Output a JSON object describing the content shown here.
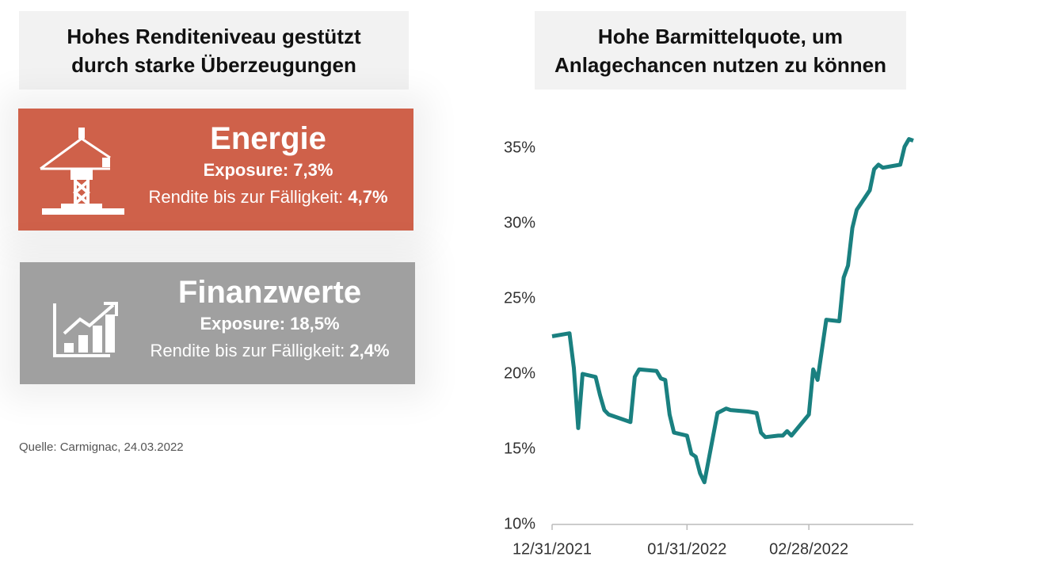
{
  "left": {
    "title": [
      "Hohes Renditeniveau gestützt",
      "durch starke Überzeugungen"
    ],
    "cards": [
      {
        "name": "Energie",
        "exposure_label": "Exposure:",
        "exposure": "7,3%",
        "yield_label": "Rendite bis zur Fälligkeit:",
        "yield": "4,7%",
        "color": "#cf614a"
      },
      {
        "name": "Finanzwerte",
        "exposure_label": "Exposure:",
        "exposure": "18,5%",
        "yield_label": "Rendite bis zur Fälligkeit:",
        "yield": "2,4%",
        "color": "#a0a0a0"
      }
    ],
    "source": "Quelle: Carmignac, 24.03.2022"
  },
  "chart_data": {
    "type": "line",
    "title": [
      "Hohe Barmittelquote, um",
      "Anlagechancen nutzen zu können"
    ],
    "x": [
      "12/31/2021",
      "01/04/2022",
      "01/05/2022",
      "01/06/2022",
      "01/07/2022",
      "01/10/2022",
      "01/11/2022",
      "01/12/2022",
      "01/13/2022",
      "01/18/2022",
      "01/19/2022",
      "01/20/2022",
      "01/24/2022",
      "01/25/2022",
      "01/26/2022",
      "01/27/2022",
      "01/28/2022",
      "01/31/2022",
      "02/01/2022",
      "02/02/2022",
      "02/03/2022",
      "02/04/2022",
      "02/07/2022",
      "02/09/2022",
      "02/10/2022",
      "02/14/2022",
      "02/16/2022",
      "02/17/2022",
      "02/18/2022",
      "02/21/2022",
      "02/22/2022",
      "02/23/2022",
      "02/24/2022",
      "02/28/2022",
      "03/01/2022",
      "03/02/2022",
      "03/04/2022",
      "03/07/2022",
      "03/08/2022",
      "03/09/2022",
      "03/10/2022",
      "03/11/2022",
      "03/14/2022",
      "03/15/2022",
      "03/16/2022",
      "03/17/2022",
      "03/21/2022",
      "03/22/2022",
      "03/23/2022",
      "03/24/2022"
    ],
    "series": [
      {
        "color": "#1a8080",
        "values": [
          22.5,
          22.7,
          20.4,
          16.4,
          20.0,
          19.8,
          18.6,
          17.6,
          17.3,
          16.8,
          19.8,
          20.3,
          20.2,
          19.7,
          19.6,
          17.3,
          16.1,
          15.9,
          14.7,
          14.5,
          13.4,
          12.8,
          17.4,
          17.7,
          17.6,
          17.5,
          17.4,
          16.1,
          15.8,
          15.9,
          15.9,
          16.2,
          15.9,
          17.3,
          20.3,
          19.6,
          23.6,
          23.5,
          26.4,
          27.2,
          29.7,
          30.9,
          32.2,
          33.6,
          33.9,
          33.7,
          33.9,
          35.1,
          35.6,
          35.5
        ]
      }
    ],
    "xlim": [
      "12/31/2021",
      "03/24/2022"
    ],
    "xticks": [
      "12/31/2021",
      "01/31/2022",
      "02/28/2022"
    ],
    "ylim": [
      10,
      37
    ],
    "yticks": [
      {
        "value": 10,
        "label": "10%"
      },
      {
        "value": 15,
        "label": "15%"
      },
      {
        "value": 20,
        "label": "20%"
      },
      {
        "value": 25,
        "label": "25%"
      },
      {
        "value": 30,
        "label": "30%"
      },
      {
        "value": 35,
        "label": "35%"
      }
    ]
  }
}
